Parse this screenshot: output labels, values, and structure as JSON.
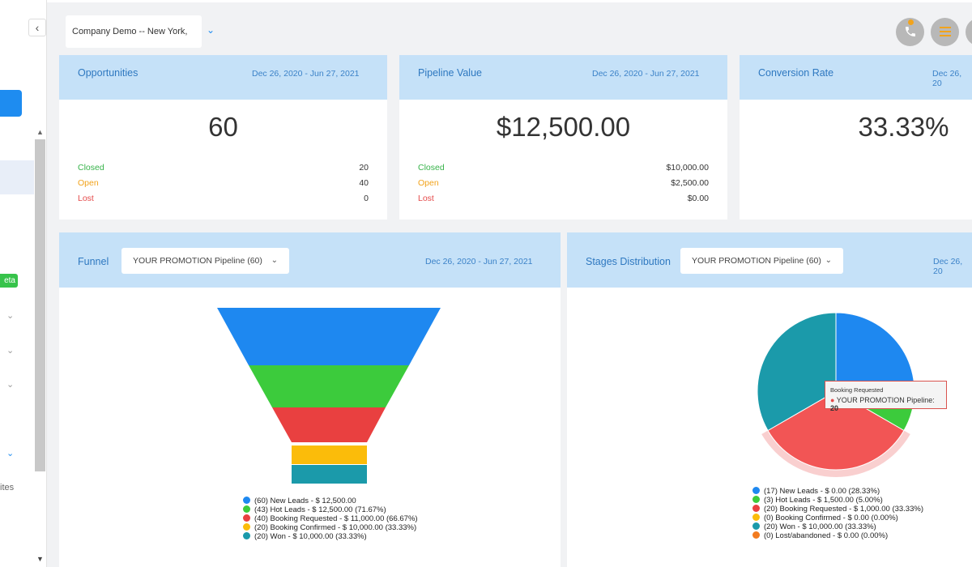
{
  "sidebar": {
    "collapse_icon": "chevron-left-icon",
    "beta_label": "eta",
    "sites_label": "ites"
  },
  "topbar": {
    "company": "Company Demo -- New York, NY",
    "icons": [
      "phone-icon",
      "list-icon",
      "user-icon"
    ],
    "accent": "#1e8cf0"
  },
  "cards": {
    "opportunities": {
      "title": "Opportunities",
      "date": "Dec 26, 2020 - Jun 27, 2021",
      "value": "60",
      "rows": [
        {
          "label": "Closed",
          "value": "20"
        },
        {
          "label": "Open",
          "value": "40"
        },
        {
          "label": "Lost",
          "value": "0"
        }
      ]
    },
    "pipeline": {
      "title": "Pipeline Value",
      "date": "Dec 26, 2020 - Jun 27, 2021",
      "value": "$12,500.00",
      "rows": [
        {
          "label": "Closed",
          "value": "$10,000.00"
        },
        {
          "label": "Open",
          "value": "$2,500.00"
        },
        {
          "label": "Lost",
          "value": "$0.00"
        }
      ]
    },
    "conversion": {
      "title": "Conversion Rate",
      "date": "Dec 26, 20",
      "value": "33.33%"
    }
  },
  "funnel": {
    "title": "Funnel",
    "select": "YOUR PROMOTION Pipeline (60)",
    "date": "Dec 26, 2020 - Jun 27, 2021",
    "legend": [
      "(60) New Leads - $ 12,500.00",
      "(43) Hot Leads - $ 12,500.00 (71.67%)",
      "(40) Booking Requested - $ 11,000.00 (66.67%)",
      "(20) Booking Confirmed - $ 10,000.00 (33.33%)",
      "(20) Won - $ 10,000.00 (33.33%)"
    ],
    "colors": [
      "#1e88f0",
      "#3ccb3c",
      "#e94040",
      "#fbbc0a",
      "#1b9aaa"
    ]
  },
  "stages": {
    "title": "Stages Distribution",
    "select": "YOUR PROMOTION Pipeline (60)",
    "date": "Dec 26, 20",
    "legend": [
      "(17) New Leads - $ 0.00 (28.33%)",
      "(3) Hot Leads - $ 1,500.00 (5.00%)",
      "(20) Booking Requested - $ 1,000.00 (33.33%)",
      "(0) Booking Confirmed - $ 0.00 (0.00%)",
      "(20) Won - $ 10,000.00 (33.33%)",
      "(0) Lost/abandoned - $ 0.00 (0.00%)"
    ],
    "colors": [
      "#1e88f0",
      "#3ccb3c",
      "#e94040",
      "#fbbc0a",
      "#1b9aaa",
      "#f27b1f"
    ],
    "tooltip": {
      "title": "Booking Requested",
      "series": "YOUR PROMOTION Pipeline:",
      "value": "20"
    }
  },
  "chart_data": [
    {
      "type": "funnel",
      "categories": [
        "New Leads",
        "Hot Leads",
        "Booking Requested",
        "Booking Confirmed",
        "Won"
      ],
      "values": [
        60,
        43,
        40,
        20,
        20
      ]
    },
    {
      "type": "pie",
      "categories": [
        "New Leads",
        "Hot Leads",
        "Booking Requested",
        "Booking Confirmed",
        "Won",
        "Lost/abandoned"
      ],
      "values": [
        17,
        3,
        20,
        0,
        20,
        0
      ],
      "highlighted": "Booking Requested"
    }
  ]
}
